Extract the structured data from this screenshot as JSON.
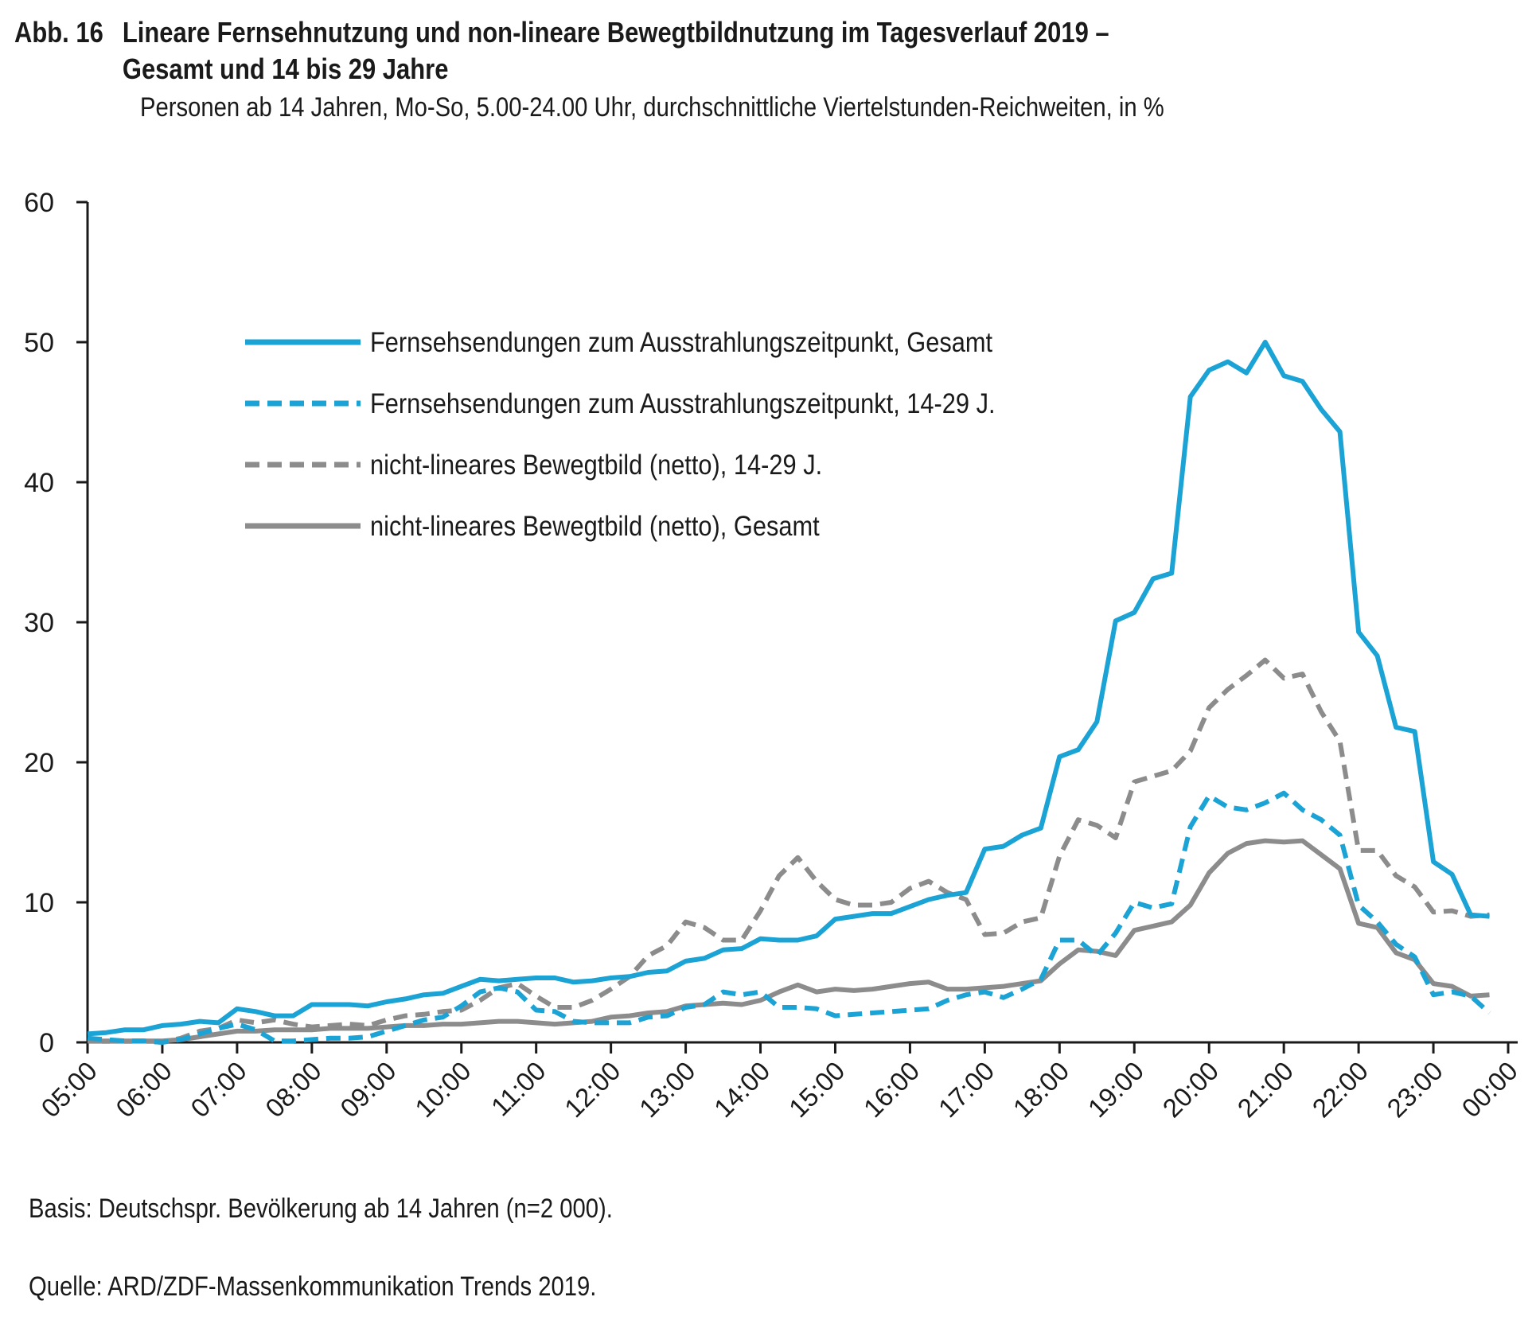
{
  "header": {
    "figure_label": "Abb. 16",
    "title_line1": "Lineare Fernsehnutzung und non-lineare Bewegtbildnutzung im Tagesverlauf 2019 –",
    "title_line2": "Gesamt und 14 bis 29 Jahre",
    "subtitle": "Personen ab 14 Jahren, Mo-So, 5.00-24.00 Uhr, durchschnittliche Viertelstunden-Reichweiten, in %"
  },
  "footer": {
    "basis": "Basis: Deutschspr. Bevölkerung ab 14 Jahren (n=2 000).",
    "source": "Quelle: ARD/ZDF-Massenkommunikation Trends 2019."
  },
  "colors": {
    "blue": "#1aa3d4",
    "gray": "#8c8c8c",
    "axis": "#1a1a1a"
  },
  "chart_data": {
    "type": "line",
    "x_unit": "quarter-hour slots starting 05:00",
    "x_ticks": [
      "05:00",
      "06:00",
      "07:00",
      "08:00",
      "09:00",
      "10:00",
      "11:00",
      "12:00",
      "13:00",
      "14:00",
      "15:00",
      "16:00",
      "17:00",
      "18:00",
      "19:00",
      "20:00",
      "21:00",
      "22:00",
      "23:00",
      "00:00"
    ],
    "ylim": [
      0,
      60
    ],
    "y_ticks": [
      0,
      10,
      20,
      30,
      40,
      50,
      60
    ],
    "grid": false,
    "legend_position": "top-left inside",
    "series": [
      {
        "name": "Fernsehsendungen zum Ausstrahlungszeitpunkt, Gesamt",
        "color": "#1aa3d4",
        "dash": "solid",
        "values": [
          0.6,
          0.7,
          0.9,
          0.9,
          1.2,
          1.3,
          1.5,
          1.4,
          2.4,
          2.2,
          1.9,
          1.9,
          2.7,
          2.7,
          2.7,
          2.6,
          2.9,
          3.1,
          3.4,
          3.5,
          4.0,
          4.5,
          4.4,
          4.5,
          4.6,
          4.6,
          4.3,
          4.4,
          4.6,
          4.7,
          5.0,
          5.1,
          5.8,
          6.0,
          6.6,
          6.7,
          7.4,
          7.3,
          7.3,
          7.6,
          8.8,
          9.0,
          9.2,
          9.2,
          9.7,
          10.2,
          10.5,
          10.7,
          13.8,
          14.0,
          14.8,
          15.3,
          20.4,
          20.9,
          22.9,
          30.1,
          30.7,
          33.1,
          33.5,
          46.1,
          48.0,
          48.6,
          47.8,
          50.0,
          47.6,
          47.2,
          45.2,
          43.6,
          29.3,
          27.6,
          22.5,
          22.2,
          12.9,
          12.0,
          9.1,
          9.0
        ]
      },
      {
        "name": "Fernsehsendungen zum Ausstrahlungszeitpunkt, 14-29 J.",
        "color": "#1aa3d4",
        "dash": "dashed",
        "values": [
          0.3,
          0.2,
          0.1,
          0.1,
          0.0,
          0.2,
          0.6,
          1.0,
          1.3,
          0.9,
          0.1,
          0.1,
          0.2,
          0.3,
          0.3,
          0.4,
          0.8,
          1.2,
          1.6,
          1.8,
          2.6,
          3.6,
          3.9,
          3.6,
          2.3,
          2.2,
          1.5,
          1.4,
          1.4,
          1.4,
          1.8,
          1.9,
          2.5,
          2.7,
          3.6,
          3.4,
          3.6,
          2.5,
          2.5,
          2.4,
          1.9,
          2.0,
          2.1,
          2.2,
          2.3,
          2.4,
          3.0,
          3.4,
          3.6,
          3.2,
          3.8,
          4.5,
          7.3,
          7.3,
          6.2,
          7.8,
          10.0,
          9.6,
          9.9,
          15.4,
          17.6,
          16.8,
          16.6,
          17.1,
          17.8,
          16.6,
          15.9,
          14.8,
          9.8,
          8.6,
          7.0,
          6.1,
          3.4,
          3.6,
          3.3,
          2.1
        ]
      },
      {
        "name": "nicht-lineares Bewegtbild (netto), 14-29 J.",
        "color": "#8c8c8c",
        "dash": "dashed",
        "values": [
          0.1,
          0.1,
          0.1,
          0.1,
          0.0,
          0.3,
          0.8,
          1.0,
          1.6,
          1.4,
          1.6,
          1.3,
          1.1,
          1.2,
          1.3,
          1.2,
          1.6,
          1.9,
          2.0,
          2.2,
          2.3,
          3.0,
          3.9,
          4.2,
          3.3,
          2.5,
          2.5,
          3.0,
          3.8,
          4.7,
          6.2,
          6.9,
          8.6,
          8.2,
          7.3,
          7.3,
          9.4,
          11.9,
          13.2,
          11.5,
          10.2,
          9.8,
          9.8,
          10.0,
          11.0,
          11.5,
          10.7,
          10.2,
          7.7,
          7.8,
          8.6,
          8.9,
          13.3,
          15.9,
          15.5,
          14.6,
          18.6,
          19.0,
          19.4,
          20.8,
          23.9,
          25.2,
          26.2,
          27.3,
          26.0,
          26.3,
          23.6,
          21.5,
          13.7,
          13.7,
          11.9,
          11.1,
          9.3,
          9.4,
          9.0,
          9.1
        ]
      },
      {
        "name": "nicht-lineares Bewegtbild (netto), Gesamt",
        "color": "#8c8c8c",
        "dash": "solid",
        "values": [
          0.1,
          0.1,
          0.1,
          0.1,
          0.1,
          0.2,
          0.4,
          0.6,
          0.8,
          0.8,
          0.9,
          0.9,
          0.9,
          1.0,
          1.0,
          1.0,
          1.1,
          1.2,
          1.2,
          1.3,
          1.3,
          1.4,
          1.5,
          1.5,
          1.4,
          1.3,
          1.4,
          1.5,
          1.8,
          1.9,
          2.1,
          2.2,
          2.6,
          2.7,
          2.8,
          2.7,
          3.0,
          3.6,
          4.1,
          3.6,
          3.8,
          3.7,
          3.8,
          4.0,
          4.2,
          4.3,
          3.8,
          3.8,
          3.9,
          4.0,
          4.2,
          4.4,
          5.6,
          6.6,
          6.5,
          6.2,
          8.0,
          8.3,
          8.6,
          9.8,
          12.1,
          13.5,
          14.2,
          14.4,
          14.3,
          14.4,
          13.4,
          12.4,
          8.5,
          8.2,
          6.4,
          5.9,
          4.2,
          4.0,
          3.3,
          3.4
        ]
      }
    ]
  }
}
